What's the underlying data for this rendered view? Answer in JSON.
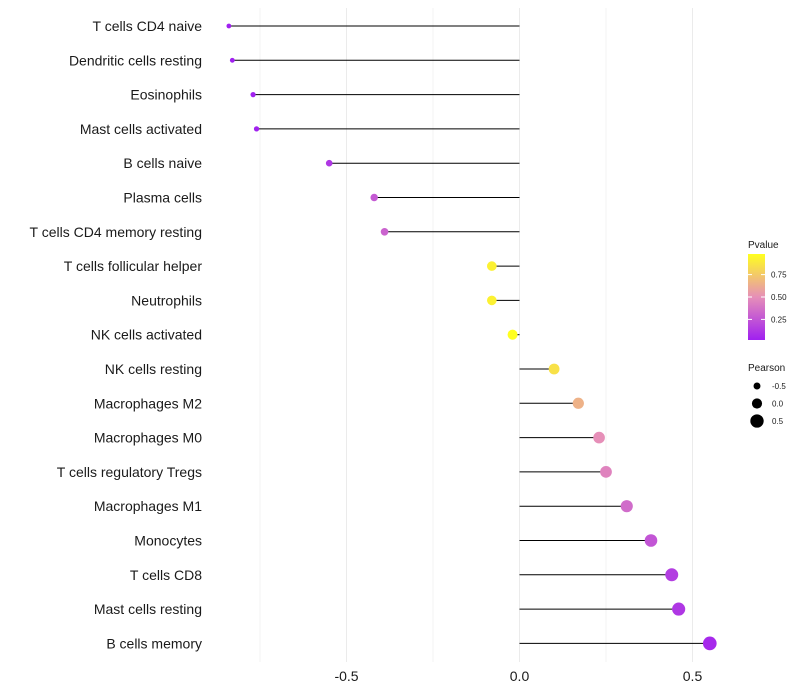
{
  "chart_data": {
    "type": "lollipop",
    "title": "",
    "xlabel": "",
    "ylabel": "",
    "xlim": [
      -0.87,
      0.6
    ],
    "x_ticks": [
      -0.5,
      0.0,
      0.5
    ],
    "x_tick_labels": [
      "-0.5",
      "0.0",
      "0.5"
    ],
    "categories": [
      "T cells CD4 naive",
      "Dendritic cells resting",
      "Eosinophils",
      "Mast cells activated",
      "B cells naive",
      "Plasma cells",
      "T cells CD4 memory resting",
      "T cells follicular helper",
      "Neutrophils",
      "NK cells activated",
      "NK cells resting",
      "Macrophages M2",
      "Macrophages M0",
      "T cells regulatory  Tregs",
      "Macrophages M1",
      "Monocytes",
      "T cells CD8",
      "Mast cells resting",
      "B cells memory"
    ],
    "pearson": [
      -0.84,
      -0.83,
      -0.77,
      -0.76,
      -0.55,
      -0.42,
      -0.39,
      -0.08,
      -0.08,
      -0.02,
      0.1,
      0.17,
      0.23,
      0.25,
      0.31,
      0.38,
      0.44,
      0.46,
      0.55
    ],
    "pvalue": [
      0.02,
      0.02,
      0.03,
      0.03,
      0.12,
      0.27,
      0.31,
      0.92,
      0.92,
      0.98,
      0.85,
      0.65,
      0.5,
      0.45,
      0.35,
      0.25,
      0.15,
      0.12,
      0.06
    ],
    "legend": {
      "color_title": "Pvalue",
      "color_ticks": [
        0.25,
        0.5,
        0.75
      ],
      "color_tick_labels": [
        "0.25",
        "0.50",
        "0.75"
      ],
      "color_low": "#a020f0",
      "color_high": "#ffff1f",
      "size_title": "Pearson",
      "size_values": [
        -0.5,
        0.0,
        0.5
      ],
      "size_labels": [
        "-0.5",
        "0.0",
        "0.5"
      ]
    },
    "colors": {
      "stem": "#000000",
      "grid": "#ebebeb"
    }
  }
}
